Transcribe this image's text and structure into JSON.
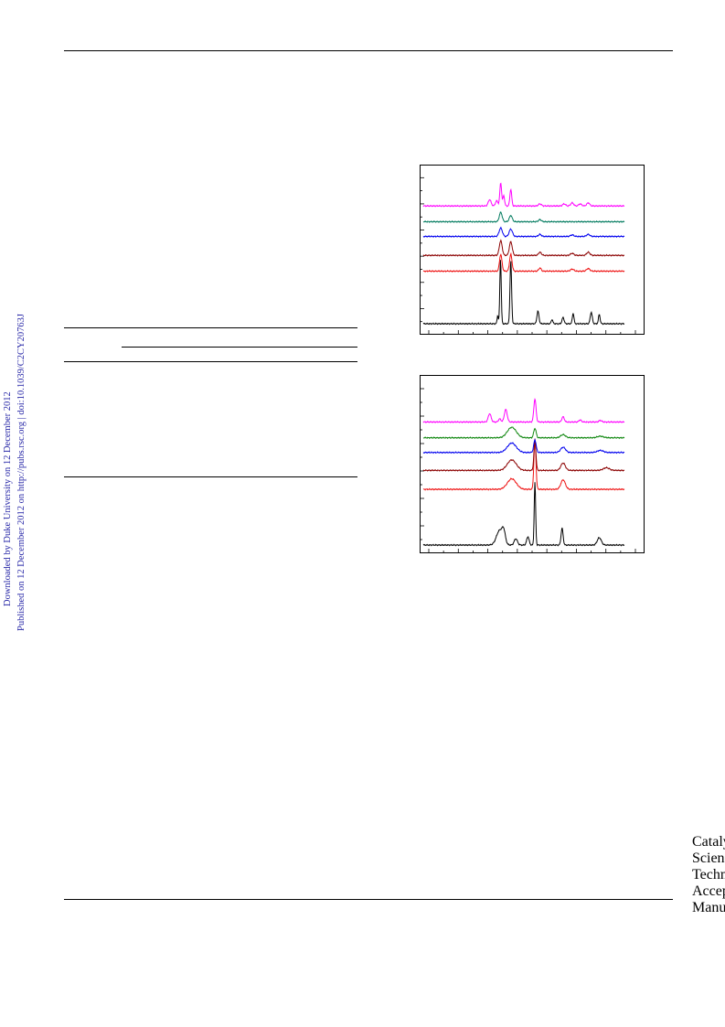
{
  "sidebar_left": {
    "line1": "Downloaded by Duke University on 12 December 2012",
    "line2": "Published on 12 December 2012 on http://pubs.rsc.org | doi:10.1039/C2CY20763J"
  },
  "watermark": "Catalysis Science & Technology Accepted Manuscript",
  "colors": {
    "sidebar_text": "#2a2aa8",
    "watermark": "#d2d4de",
    "series": [
      "#000000",
      "#ee1111",
      "#8b0000",
      "#0000ee",
      "#007a5e",
      "#ff00ff"
    ],
    "series_bottom": [
      "#000000",
      "#ee1111",
      "#8b0000",
      "#0000ee",
      "#118811",
      "#ff00ff"
    ]
  },
  "chart_data": [
    {
      "type": "line",
      "title": "",
      "xlabel": "",
      "ylabel": "",
      "x_range": [
        0,
        100
      ],
      "grid": false,
      "legend": "none",
      "series": [
        {
          "offset": 0,
          "peaks": [
            [
              37,
              0.8,
              0.3
            ],
            [
              38.4,
              6.2,
              0.35
            ],
            [
              43.5,
              6.0,
              0.4
            ],
            [
              57,
              1.2,
              0.5
            ],
            [
              64,
              0.4,
              0.4
            ],
            [
              69.5,
              0.6,
              0.5
            ],
            [
              74.5,
              1.0,
              0.4
            ],
            [
              83.5,
              1.1,
              0.5
            ],
            [
              87.5,
              0.9,
              0.4
            ]
          ]
        },
        {
          "offset": 5,
          "peaks": [
            [
              38.5,
              1.6,
              0.6
            ],
            [
              43.5,
              1.6,
              0.6
            ],
            [
              58,
              0.3,
              0.6
            ],
            [
              74,
              0.2,
              0.8
            ],
            [
              82,
              0.25,
              0.8
            ]
          ]
        },
        {
          "offset": 6.5,
          "peaks": [
            [
              38.5,
              1.4,
              0.7
            ],
            [
              43.5,
              1.3,
              0.7
            ],
            [
              58,
              0.3,
              0.7
            ],
            [
              74,
              0.2,
              0.8
            ],
            [
              82,
              0.3,
              0.8
            ]
          ]
        },
        {
          "offset": 8.3,
          "peaks": [
            [
              38.5,
              0.8,
              0.8
            ],
            [
              43.5,
              0.7,
              0.8
            ],
            [
              58,
              0.2,
              0.7
            ],
            [
              74,
              0.15,
              0.8
            ],
            [
              82,
              0.2,
              0.8
            ]
          ]
        },
        {
          "offset": 9.7,
          "peaks": [
            [
              38.5,
              0.9,
              0.7
            ],
            [
              43.5,
              0.6,
              0.7
            ],
            [
              58,
              0.2,
              0.7
            ]
          ]
        },
        {
          "offset": 11.2,
          "peaks": [
            [
              33,
              0.6,
              0.7
            ],
            [
              36.5,
              0.5,
              0.6
            ],
            [
              38.5,
              2.2,
              0.45
            ],
            [
              40,
              1.0,
              0.4
            ],
            [
              43.5,
              1.6,
              0.45
            ],
            [
              58,
              0.2,
              0.7
            ],
            [
              70,
              0.2,
              0.7
            ],
            [
              74,
              0.3,
              0.7
            ],
            [
              78,
              0.2,
              0.7
            ],
            [
              82,
              0.3,
              0.7
            ]
          ]
        }
      ]
    },
    {
      "type": "line",
      "title": "",
      "xlabel": "",
      "ylabel": "",
      "x_range": [
        0,
        100
      ],
      "grid": false,
      "legend": "none",
      "series": [
        {
          "offset": 0,
          "peaks": [
            [
              38,
              1.4,
              1.6
            ],
            [
              40,
              1.0,
              0.8
            ],
            [
              46,
              0.6,
              0.8
            ],
            [
              52,
              0.8,
              0.6
            ],
            [
              55.5,
              6.0,
              0.35
            ],
            [
              69,
              1.6,
              0.5
            ],
            [
              87.5,
              0.7,
              1.0
            ]
          ]
        },
        {
          "offset": 5.3,
          "peaks": [
            [
              44,
              1.0,
              2.2
            ],
            [
              55.5,
              4.8,
              0.5
            ],
            [
              69.5,
              0.9,
              1.1
            ]
          ]
        },
        {
          "offset": 7.1,
          "peaks": [
            [
              44,
              1.0,
              2.2
            ],
            [
              55.5,
              2.8,
              0.5
            ],
            [
              69.5,
              0.7,
              1.1
            ],
            [
              91,
              0.25,
              1.5
            ]
          ]
        },
        {
          "offset": 8.8,
          "peaks": [
            [
              44,
              0.9,
              2.2
            ],
            [
              55.5,
              1.2,
              0.6
            ],
            [
              69.5,
              0.5,
              1.2
            ],
            [
              88,
              0.2,
              1.5
            ]
          ]
        },
        {
          "offset": 10.2,
          "peaks": [
            [
              44,
              1.0,
              2.2
            ],
            [
              55.5,
              0.9,
              0.6
            ],
            [
              69.5,
              0.3,
              1.2
            ],
            [
              88,
              0.15,
              1.5
            ]
          ]
        },
        {
          "offset": 11.7,
          "peaks": [
            [
              33,
              0.8,
              0.7
            ],
            [
              38,
              0.3,
              0.6
            ],
            [
              41,
              1.2,
              0.7
            ],
            [
              55.5,
              2.2,
              0.55
            ],
            [
              69.5,
              0.5,
              0.6
            ],
            [
              78,
              0.2,
              0.6
            ],
            [
              88,
              0.15,
              0.7
            ]
          ]
        }
      ]
    }
  ]
}
